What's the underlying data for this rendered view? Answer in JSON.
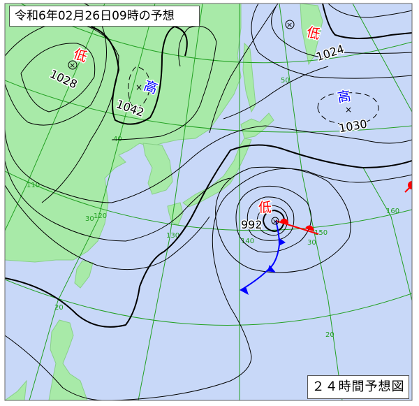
{
  "header": {
    "title": "令和6年02月26日09時の予想"
  },
  "footer": {
    "label": "２４時間予想図"
  },
  "colors": {
    "ocean": "#c8d8f8",
    "land": "#a8eaa8",
    "grid": "#22a022",
    "low": "#ff0000",
    "high": "#0000ff",
    "warm_front": "#ff0000",
    "cold_front": "#0000ff"
  },
  "systems": [
    {
      "type": "low",
      "symbol": "低",
      "pressure": "1028"
    },
    {
      "type": "high",
      "symbol": "高",
      "pressure": "1042"
    },
    {
      "type": "low",
      "symbol": "低",
      "pressure": "1024"
    },
    {
      "type": "high",
      "symbol": "高",
      "pressure": "1030"
    },
    {
      "type": "low",
      "symbol": "低",
      "pressure": "992"
    }
  ],
  "grid_labels": {
    "lat50": "50",
    "lat40": "40",
    "lat30a": "30",
    "lat30b": "30",
    "lat20a": "20",
    "lat20b": "20",
    "lon110": "110",
    "lon120": "120",
    "lon130": "130",
    "lon140": "140",
    "lon150": "150",
    "lon160": "160"
  },
  "fronts": [
    {
      "type": "warm"
    },
    {
      "type": "cold"
    }
  ]
}
